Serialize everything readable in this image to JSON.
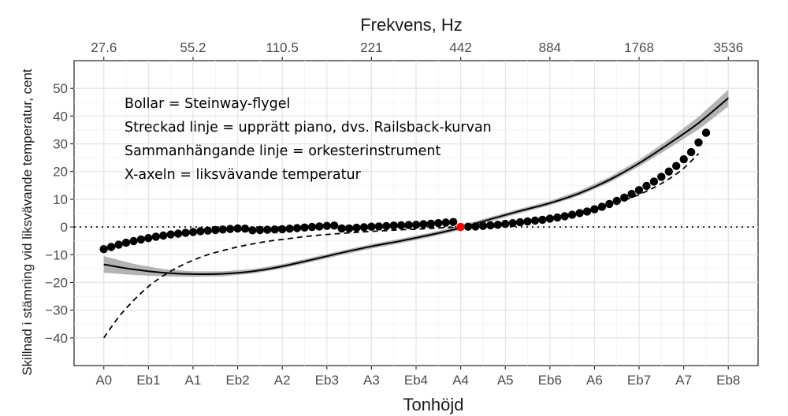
{
  "chart_data": {
    "type": "scatter",
    "xlabel": "Tonhöjd",
    "x2label": "Frekvens, Hz",
    "ylabel": "Skillnad i stämning vid liksvävande temperatur, cent",
    "xlim": [
      -4,
      88
    ],
    "ylim": [
      -50,
      60
    ],
    "grid": true,
    "x_ticks": [
      {
        "pos": 0,
        "label": "A0"
      },
      {
        "pos": 6,
        "label": "Eb1"
      },
      {
        "pos": 12,
        "label": "A1"
      },
      {
        "pos": 18,
        "label": "Eb2"
      },
      {
        "pos": 24,
        "label": "A2"
      },
      {
        "pos": 30,
        "label": "Eb3"
      },
      {
        "pos": 36,
        "label": "A3"
      },
      {
        "pos": 42,
        "label": "Eb4"
      },
      {
        "pos": 48,
        "label": "A4"
      },
      {
        "pos": 54,
        "label": "A5"
      },
      {
        "pos": 60,
        "label": "Eb6"
      },
      {
        "pos": 66,
        "label": "A6"
      },
      {
        "pos": 72,
        "label": "Eb7"
      },
      {
        "pos": 78,
        "label": "A7"
      },
      {
        "pos": 84,
        "label": "Eb8"
      }
    ],
    "x2_ticks": [
      {
        "pos": 0,
        "label": "27.6"
      },
      {
        "pos": 12,
        "label": "55.2"
      },
      {
        "pos": 24,
        "label": "110.5"
      },
      {
        "pos": 36,
        "label": "221"
      },
      {
        "pos": 48,
        "label": "442"
      },
      {
        "pos": 60,
        "label": "884"
      },
      {
        "pos": 72,
        "label": "1768"
      },
      {
        "pos": 84,
        "label": "3536"
      }
    ],
    "y_ticks": [
      {
        "value": -40,
        "label": "−40"
      },
      {
        "value": -30,
        "label": "−30"
      },
      {
        "value": -20,
        "label": "−20"
      },
      {
        "value": -10,
        "label": "−10"
      },
      {
        "value": 0,
        "label": "0"
      },
      {
        "value": 10,
        "label": "10"
      },
      {
        "value": 20,
        "label": "20"
      },
      {
        "value": 30,
        "label": "30"
      },
      {
        "value": 40,
        "label": "40"
      },
      {
        "value": 50,
        "label": "50"
      }
    ],
    "annotations": [
      "Bollar = Steinway-flygel",
      "Streckad linje = upprätt piano, dvs. Railsback-kurvan",
      "Sammanhängande linje = orkesterinstrument",
      "X-axeln = liksvävande temperatur"
    ],
    "reference_line_y": 0,
    "highlight_point": {
      "x": 48,
      "y": 0,
      "color": "#ff0000"
    },
    "series": [
      {
        "style": "points",
        "color": "#000000",
        "x": [
          0,
          1,
          2,
          3,
          4,
          5,
          6,
          7,
          8,
          9,
          10,
          11,
          12,
          13,
          14,
          15,
          16,
          17,
          18,
          19,
          20,
          21,
          22,
          23,
          24,
          25,
          26,
          27,
          28,
          29,
          30,
          31,
          32,
          33,
          34,
          35,
          36,
          37,
          38,
          39,
          40,
          41,
          42,
          43,
          44,
          45,
          46,
          47,
          48,
          49,
          50,
          51,
          52,
          53,
          54,
          55,
          56,
          57,
          58,
          59,
          60,
          61,
          62,
          63,
          64,
          65,
          66,
          67,
          68,
          69,
          70,
          71,
          72,
          73,
          74,
          75,
          76,
          77,
          78,
          79,
          80,
          81
        ],
        "y": [
          -8,
          -7.2,
          -6.4,
          -5.7,
          -5.1,
          -4.5,
          -4,
          -3.5,
          -3.1,
          -2.7,
          -2.4,
          -2.1,
          -1.8,
          -1.5,
          -1.3,
          -1.1,
          -0.9,
          -0.7,
          -0.5,
          -0.6,
          -1.2,
          -1.1,
          -1,
          -0.9,
          -0.8,
          -0.6,
          -0.4,
          -0.2,
          0,
          0.2,
          0.4,
          0.5,
          -0.5,
          -0.5,
          -0.3,
          -0.1,
          0.1,
          0.2,
          0.3,
          0.5,
          0.6,
          0.7,
          0.8,
          1,
          1.2,
          1.4,
          1.6,
          1.8,
          0,
          0.1,
          0.2,
          0.4,
          0.6,
          0.8,
          1.1,
          1.4,
          1.7,
          2,
          2.3,
          2.6,
          3,
          3.4,
          3.9,
          4.4,
          5,
          5.6,
          6.4,
          7.3,
          8.3,
          9.4,
          10.6,
          11.9,
          13.3,
          14.8,
          16.4,
          18.1,
          20,
          22,
          24.4,
          27,
          30.5,
          34
        ]
      },
      {
        "style": "dashed",
        "color": "#000000",
        "x": [
          0,
          2,
          4,
          6,
          8,
          10,
          12,
          14,
          16,
          18,
          20,
          22,
          24,
          26,
          28,
          30,
          32,
          34,
          36,
          38,
          40,
          42,
          44,
          46,
          48,
          50,
          52,
          54,
          56,
          58,
          60,
          62,
          64,
          66,
          68,
          70,
          72,
          74,
          76,
          78,
          80
        ],
        "y": [
          -40,
          -32.5,
          -26.5,
          -21.5,
          -17.6,
          -14.5,
          -12,
          -10,
          -8.5,
          -7.2,
          -6.1,
          -5.2,
          -4.5,
          -3.8,
          -3.2,
          -2.7,
          -2.3,
          -1.9,
          -1.6,
          -1.3,
          -1,
          -0.8,
          -0.5,
          -0.2,
          0,
          0.3,
          0.7,
          1.2,
          1.8,
          2.5,
          3.3,
          4.2,
          5.3,
          6.6,
          8,
          9.7,
          11.7,
          14.2,
          17.3,
          21.2,
          26.5
        ]
      },
      {
        "style": "solid",
        "color": "#000000",
        "ribbon_color": "#b3b3b3",
        "x": [
          0,
          4,
          8,
          12,
          16,
          20,
          24,
          28,
          32,
          36,
          40,
          44,
          48,
          52,
          56,
          60,
          64,
          68,
          72,
          76,
          80,
          84
        ],
        "y": [
          -13.5,
          -15.3,
          -16.5,
          -17,
          -16.9,
          -16,
          -14.2,
          -11.8,
          -9.3,
          -7,
          -5,
          -2.8,
          -0.3,
          2.8,
          5.8,
          8.6,
          12.2,
          17,
          23,
          30,
          37.5,
          46.5
        ],
        "band": [
          3,
          2,
          1.3,
          1,
          0.9,
          0.8,
          0.8,
          0.8,
          0.8,
          0.8,
          0.8,
          0.8,
          0.8,
          0.8,
          0.8,
          0.8,
          0.9,
          1,
          1.2,
          1.6,
          2.3,
          3
        ]
      }
    ]
  }
}
